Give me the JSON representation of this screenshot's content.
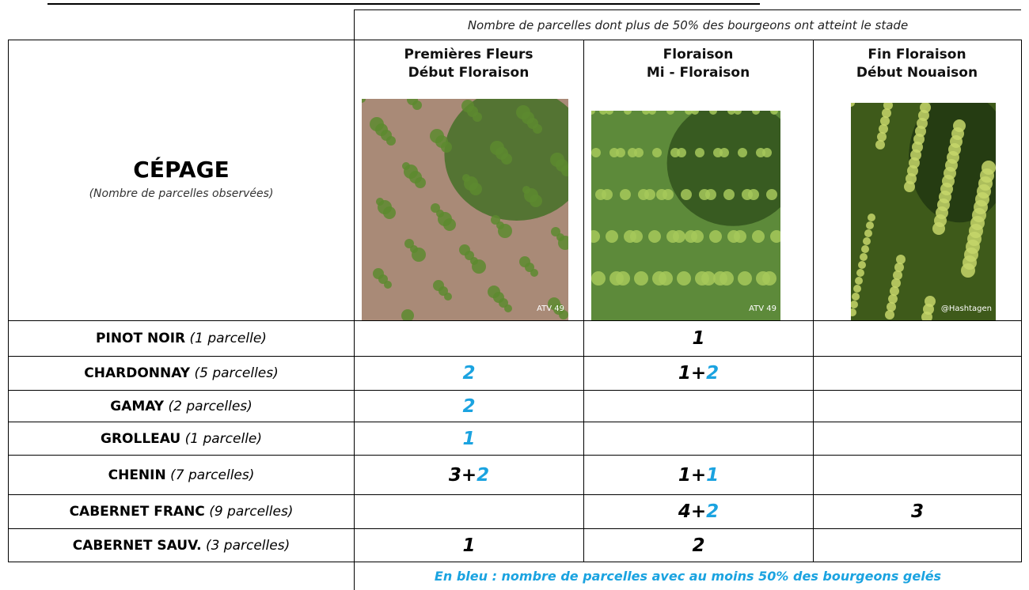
{
  "header_note": "Nombre de parcelles dont plus de 50% des bourgeons ont atteint le stade",
  "corner": {
    "title": "CÉPAGE",
    "subtitle": "(Nombre de parcelles observées)"
  },
  "stages": [
    {
      "line1": "Premières Fleurs",
      "line2": "Début Floraison",
      "credit": "ATV 49"
    },
    {
      "line1": "Floraison",
      "line2": "Mi - Floraison",
      "credit": "ATV 49"
    },
    {
      "line1": "Fin Floraison",
      "line2": "Début Nouaison",
      "credit": "@Hashtagen"
    }
  ],
  "rows": [
    {
      "name": "PINOT NOIR",
      "detail": "(1 parcelle)",
      "cells": [
        [],
        [
          {
            "text": "1",
            "frozen": false
          }
        ],
        []
      ]
    },
    {
      "name": "CHARDONNAY",
      "detail": "(5 parcelles)",
      "cells": [
        [
          {
            "text": "2",
            "frozen": true
          }
        ],
        [
          {
            "text": "1",
            "frozen": false
          },
          {
            "text": "+",
            "frozen": false
          },
          {
            "text": "2",
            "frozen": true
          }
        ],
        []
      ]
    },
    {
      "name": "GAMAY",
      "detail": "(2 parcelles)",
      "cells": [
        [
          {
            "text": "2",
            "frozen": true
          }
        ],
        [],
        []
      ]
    },
    {
      "name": "GROLLEAU",
      "detail": "(1 parcelle)",
      "cells": [
        [
          {
            "text": "1",
            "frozen": true
          }
        ],
        [],
        []
      ]
    },
    {
      "name": "CHENIN",
      "detail": "(7 parcelles)",
      "cells": [
        [
          {
            "text": "3",
            "frozen": false
          },
          {
            "text": "+",
            "frozen": false
          },
          {
            "text": "2",
            "frozen": true
          }
        ],
        [
          {
            "text": "1",
            "frozen": false
          },
          {
            "text": "+",
            "frozen": false
          },
          {
            "text": "1",
            "frozen": true
          }
        ],
        []
      ]
    },
    {
      "name": "CABERNET FRANC",
      "detail": "(9 parcelles)",
      "cells": [
        [],
        [
          {
            "text": "4",
            "frozen": false
          },
          {
            "text": "+",
            "frozen": false
          },
          {
            "text": "2",
            "frozen": true
          }
        ],
        [
          {
            "text": "3",
            "frozen": false
          }
        ]
      ]
    },
    {
      "name": "CABERNET SAUV.",
      "detail": "(3 parcelles)",
      "cells": [
        [
          {
            "text": "1",
            "frozen": false
          }
        ],
        [
          {
            "text": "2",
            "frozen": false
          }
        ],
        []
      ]
    }
  ],
  "footer_note": "En bleu : nombre de parcelles avec au moins 50% des bourgeons gelés"
}
